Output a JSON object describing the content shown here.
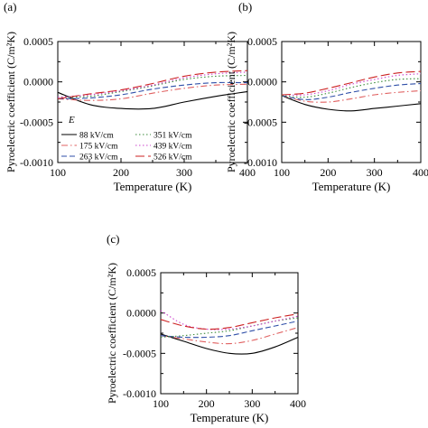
{
  "figure": {
    "panels": [
      {
        "panel_label": "(a)",
        "ylabel": "Pyroelectric coefficient (C/m²K)",
        "xlabel": "Temperature (K)",
        "xticks": [
          "100",
          "200",
          "300",
          "400"
        ],
        "yticks": [
          "0.0005",
          "0.0000",
          "-0.0005",
          "-0.0010"
        ],
        "legend_title": "E",
        "legend": [
          "88 kV/cm",
          "175 kV/cm",
          "263 kV/cm",
          "351 kV/cm",
          "439 kV/cm",
          "526 kV/cm"
        ]
      },
      {
        "panel_label": "(b)",
        "ylabel": "Pyroelectric coefficient (C/m²K)",
        "xlabel": "Temperature (K)",
        "xticks": [
          "100",
          "200",
          "300",
          "400"
        ],
        "yticks": [
          "0.0005",
          "0.0000",
          "-0.0005",
          "-0.0010"
        ]
      },
      {
        "panel_label": "(c)",
        "ylabel": "Pyroelectric coefficient (C/m²K)",
        "xlabel": "Temperature (K)",
        "xticks": [
          "100",
          "200",
          "300",
          "400"
        ],
        "yticks": [
          "0.0005",
          "0.0000",
          "-0.0005",
          "-0.0010"
        ]
      }
    ]
  },
  "chart_data": [
    {
      "type": "line",
      "title": "(a)",
      "xlabel": "Temperature (K)",
      "ylabel": "Pyroelectric coefficient (C/m²K)",
      "xlim": [
        100,
        400
      ],
      "ylim": [
        -0.001,
        0.0005
      ],
      "x": [
        100,
        150,
        200,
        250,
        300,
        350,
        400
      ],
      "series": [
        {
          "name": "88 kV/cm",
          "color": "#000000",
          "dash": "solid",
          "values": [
            -0.00013,
            -0.00028,
            -0.00033,
            -0.00033,
            -0.00025,
            -0.00018,
            -0.00012
          ]
        },
        {
          "name": "175 kV/cm",
          "color": "#e06060",
          "dash": "dashdot",
          "values": [
            -0.00021,
            -0.00023,
            -0.00021,
            -0.00014,
            -8e-05,
            -4e-05,
            -3e-05
          ]
        },
        {
          "name": "263 kV/cm",
          "color": "#2f4fa8",
          "dash": "dashed",
          "values": [
            -0.00021,
            -0.0002,
            -0.00016,
            -9e-05,
            -4e-05,
            -1e-05,
            -1e-05
          ]
        },
        {
          "name": "351 kV/cm",
          "color": "#3a8a3a",
          "dash": "dotted",
          "values": [
            -0.00019,
            -0.00018,
            -0.00012,
            -5e-05,
            3e-05,
            7e-05,
            8e-05
          ]
        },
        {
          "name": "439 kV/cm",
          "color": "#cc44cc",
          "dash": "dotted",
          "values": [
            -0.00019,
            -0.00016,
            -0.00011,
            -4e-05,
            5e-05,
            0.0001,
            0.00012
          ]
        },
        {
          "name": "526 kV/cm",
          "color": "#cc2222",
          "dash": "longdash",
          "values": [
            -0.00021,
            -0.00015,
            -0.0001,
            -2e-05,
            7e-05,
            0.00012,
            0.00014
          ]
        }
      ]
    },
    {
      "type": "line",
      "title": "(b)",
      "xlabel": "Temperature (K)",
      "ylabel": "Pyroelectric coefficient (C/m²K)",
      "xlim": [
        100,
        400
      ],
      "ylim": [
        -0.001,
        0.0005
      ],
      "x": [
        100,
        150,
        200,
        250,
        300,
        350,
        400
      ],
      "series": [
        {
          "name": "88 kV/cm",
          "color": "#000000",
          "dash": "solid",
          "values": [
            -0.00017,
            -0.00028,
            -0.00034,
            -0.00036,
            -0.00033,
            -0.0003,
            -0.00027
          ]
        },
        {
          "name": "175 kV/cm",
          "color": "#e06060",
          "dash": "dashdot",
          "values": [
            -0.00017,
            -0.00024,
            -0.00025,
            -0.00021,
            -0.00016,
            -0.00013,
            -0.00011
          ]
        },
        {
          "name": "263 kV/cm",
          "color": "#2f4fa8",
          "dash": "dashed",
          "values": [
            -0.00017,
            -0.00022,
            -0.00019,
            -0.00013,
            -8e-05,
            -4e-05,
            -2e-05
          ]
        },
        {
          "name": "351 kV/cm",
          "color": "#3a8a3a",
          "dash": "dotted",
          "values": [
            -0.00017,
            -0.00019,
            -0.00014,
            -7e-05,
            -1e-05,
            3e-05,
            4e-05
          ]
        },
        {
          "name": "439 kV/cm",
          "color": "#cc44cc",
          "dash": "dotted",
          "values": [
            -0.00016,
            -0.00016,
            -0.00011,
            -3e-05,
            3e-05,
            8e-05,
            0.0001
          ]
        },
        {
          "name": "526 kV/cm",
          "color": "#cc2222",
          "dash": "longdash",
          "values": [
            -0.00016,
            -0.00014,
            -8e-05,
            -1e-05,
            6e-05,
            0.00011,
            0.00013
          ]
        }
      ]
    },
    {
      "type": "line",
      "title": "(c)",
      "xlabel": "Temperature (K)",
      "ylabel": "Pyroelectric coefficient (C/m²K)",
      "xlim": [
        100,
        400
      ],
      "ylim": [
        -0.001,
        0.0005
      ],
      "x": [
        100,
        150,
        200,
        250,
        300,
        350,
        400
      ],
      "series": [
        {
          "name": "88 kV/cm",
          "color": "#000000",
          "dash": "solid",
          "values": [
            -0.00026,
            -0.00035,
            -0.00044,
            -0.0005,
            -0.0005,
            -0.00042,
            -0.0003
          ]
        },
        {
          "name": "175 kV/cm",
          "color": "#e06060",
          "dash": "dashdot",
          "values": [
            -0.00028,
            -0.00032,
            -0.00036,
            -0.00038,
            -0.00034,
            -0.00026,
            -0.00018
          ]
        },
        {
          "name": "263 kV/cm",
          "color": "#2f4fa8",
          "dash": "dashed",
          "values": [
            -0.00028,
            -0.0003,
            -0.0003,
            -0.00028,
            -0.00022,
            -0.00016,
            -0.0001
          ]
        },
        {
          "name": "351 kV/cm",
          "color": "#3a8a3a",
          "dash": "dotted",
          "values": [
            -0.0003,
            -0.00028,
            -0.00025,
            -0.00022,
            -0.00016,
            -0.0001,
            -6e-05
          ]
        },
        {
          "name": "439 kV/cm",
          "color": "#cc44cc",
          "dash": "dotted",
          "values": [
            3e-05,
            -0.00014,
            -0.0002,
            -0.0002,
            -0.00016,
            -0.0001,
            -4e-05
          ]
        },
        {
          "name": "526 kV/cm",
          "color": "#cc2222",
          "dash": "longdash",
          "values": [
            -8e-05,
            -0.00016,
            -0.0002,
            -0.00018,
            -0.00012,
            -6e-05,
            -1e-05
          ]
        }
      ]
    }
  ]
}
